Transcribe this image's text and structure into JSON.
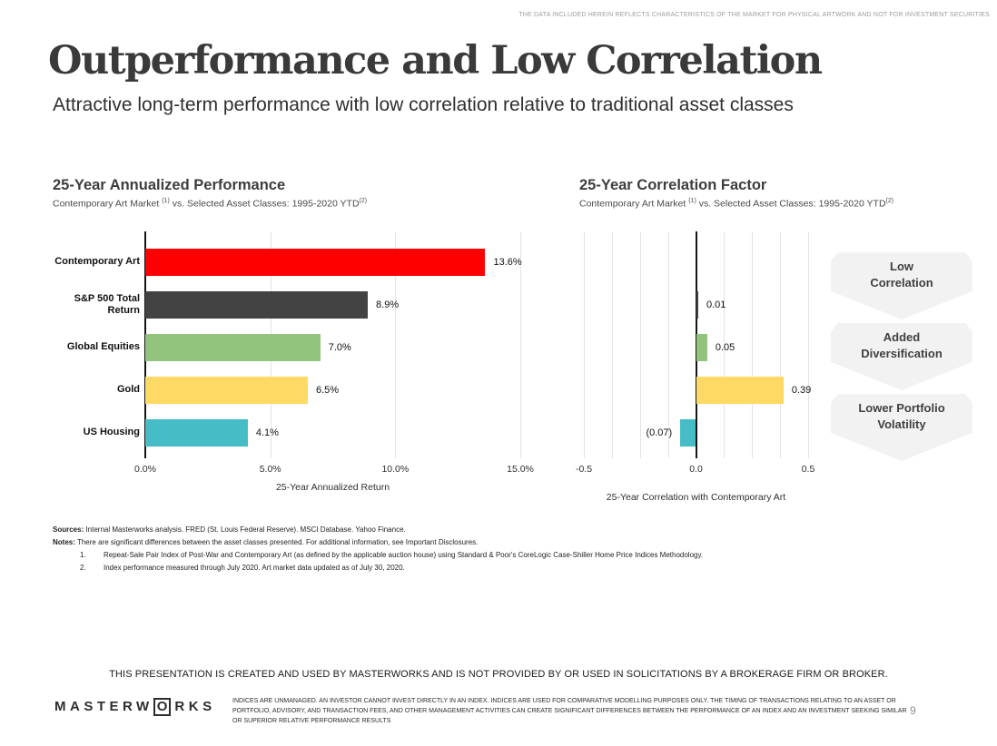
{
  "top_disclaimer": "THE DATA INCLUDED HEREIN REFLECTS CHARACTERISTICS OF THE MARKET FOR PHYSICAL ARTWORK AND NOT FOR INVESTMENT SECURITIES",
  "header": {
    "title": "Outperformance and Low Correlation",
    "subtitle": "Attractive long-term performance with low correlation relative to traditional asset classes"
  },
  "charts": {
    "performance": {
      "subtitle": {
        "pre": "Contemporary Art Market ",
        "sup1": "(1)",
        "mid": " vs. Selected Asset Classes: 1995-2020 YTD",
        "sup2": "(2)"
      }
    },
    "correlation": {
      "subtitle": {
        "pre": "Contemporary Art Market ",
        "sup1": "(1)",
        "mid": " vs. Selected Asset Classes: 1995-2020 YTD",
        "sup2": "(2)"
      }
    }
  },
  "chart_data": [
    {
      "type": "bar",
      "orientation": "horizontal",
      "title": "25-Year Annualized Performance",
      "subtitle": "Contemporary Art Market (1) vs. Selected Asset Classes: 1995-2020 YTD(2)",
      "categories": [
        "Contemporary Art",
        "S&P 500 Total Return",
        "Global Equities",
        "Gold",
        "US Housing"
      ],
      "values": [
        13.6,
        8.9,
        7.0,
        6.5,
        4.1
      ],
      "value_labels": [
        "13.6%",
        "8.9%",
        "7.0%",
        "6.5%",
        "4.1%"
      ],
      "colors": [
        "#ff0000",
        "#434343",
        "#93c47d",
        "#ffd966",
        "#46bdc6"
      ],
      "xlabel": "25-Year Annualized Return",
      "xlim": [
        0,
        15
      ],
      "tick_values": [
        0,
        5,
        10,
        15
      ],
      "tick_labels": [
        "0.0%",
        "5.0%",
        "10.0%",
        "15.0%"
      ],
      "grid": true,
      "legend": false
    },
    {
      "type": "bar",
      "orientation": "horizontal",
      "title": "25-Year Correlation Factor",
      "subtitle": "Contemporary Art Market (1) vs. Selected Asset Classes: 1995-2020 YTD(2)",
      "categories": [
        "Contemporary Art",
        "S&P 500 Total Return",
        "Global Equities",
        "Gold",
        "US Housing"
      ],
      "values": [
        null,
        0.01,
        0.05,
        0.39,
        -0.07
      ],
      "value_labels": [
        "",
        "0.01",
        "0.05",
        "0.39",
        "(0.07)"
      ],
      "colors": [
        "#ff0000",
        "#434343",
        "#93c47d",
        "#ffd966",
        "#46bdc6"
      ],
      "xlabel": "25-Year Correlation with Contemporary Art",
      "xlim": [
        -0.5,
        0.5
      ],
      "tick_values": [
        -0.5,
        0,
        0.5
      ],
      "tick_labels": [
        "-0.5",
        "0.0",
        "0.5"
      ],
      "gridline_step": 0.125,
      "grid": true,
      "legend": false
    }
  ],
  "banners": [
    {
      "label": "Low\nCorrelation"
    },
    {
      "label": "Added\nDiversification"
    },
    {
      "label": "Lower Portfolio\nVolatility"
    }
  ],
  "footnotes": {
    "sources_label": "Sources:",
    "sources_text": " Internal Masterworks analysis. FRED (St. Louis Federal Reserve). MSCI Database. Yahoo Finance.",
    "notes_label": "Notes:",
    "notes_text": "  There are significant differences between the asset classes presented. For additional information, see Important Disclosures.",
    "items": [
      {
        "num": "1.",
        "text": "Repeat-Sale Pair Index of Post-War and Contemporary Art (as defined by the applicable auction house) using Standard & Poor's CoreLogic Case-Shiller Home Price Indices Methodology."
      },
      {
        "num": "2.",
        "text": "Index performance measured through July 2020. Art market data updated as of July 30, 2020."
      }
    ]
  },
  "footer": {
    "disclaimer": "THIS PRESENTATION  IS CREATED AND USED BY MASTERWORKS AND IS NOT PROVIDED BY OR USED IN SOLICITATIONS BY A BROKERAGE FIRM OR BROKER.",
    "logo": {
      "pre": "MASTERW",
      "boxed_letter": "O",
      "post": "RKS"
    },
    "fine_print": "INDICES ARE UNMANAGED. AN INVESTOR CANNOT INVEST DIRECTLY IN AN INDEX. INDICES ARE USED FOR COMPARATIVE MODELLING PURPOSES ONLY. THE TIMING OF TRANSACTIONS RELATING TO AN ASSET OR\nPORTFOLIO, ADVISORY, AND TRANSACTION FEES, AND OTHER MANAGEMENT ACTIVITIES CAN CREATE SIGNIFICANT DIFFERENCES BETWEEN THE PERFORMANCE OF AN INDEX AND AN INVESTMENT SEEKING SIMILAR\nOR SUPERIOR RELATIVE PERFORMANCE RESULTS",
    "page_number": "9"
  },
  "colors": {
    "contemporary_art": "#ff0000",
    "sp500": "#434343",
    "global_equities": "#93c47d",
    "gold": "#ffd966",
    "us_housing": "#46bdc6",
    "banner_bg": "#f2f2f2",
    "gridline": "#e3e3e3"
  }
}
